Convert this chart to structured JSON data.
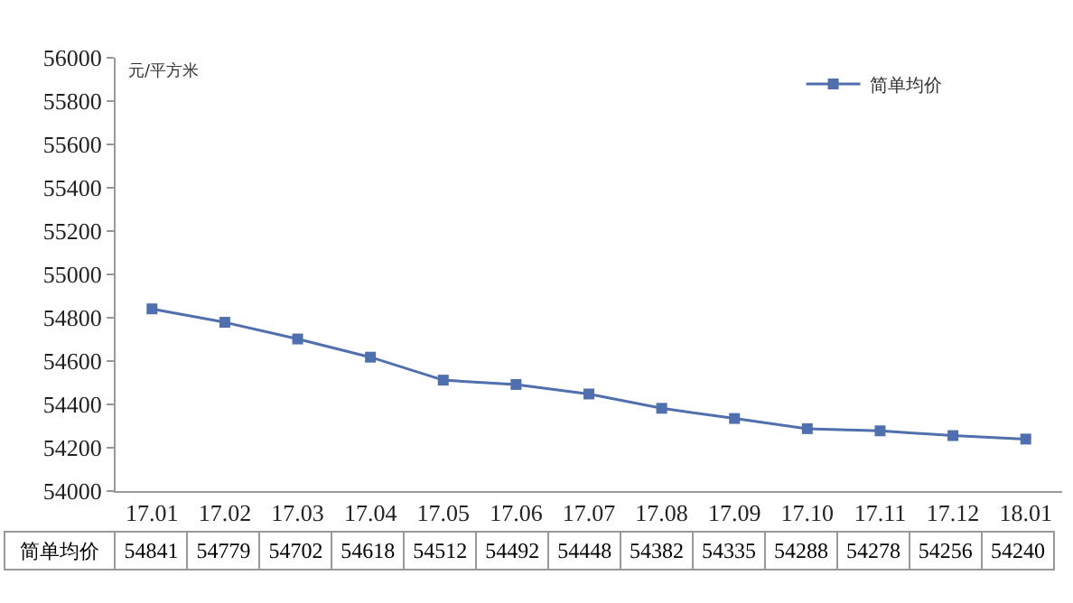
{
  "chart_data": {
    "type": "line",
    "ylabel": "元/平方米",
    "categories": [
      "17.01",
      "17.02",
      "17.03",
      "17.04",
      "17.05",
      "17.06",
      "17.07",
      "17.08",
      "17.09",
      "17.10",
      "17.11",
      "17.12",
      "18.01"
    ],
    "series": [
      {
        "name": "简单均价",
        "color": "#4f6fae",
        "values": [
          54841,
          54779,
          54702,
          54618,
          54512,
          54492,
          54448,
          54382,
          54335,
          54288,
          54278,
          54256,
          54240
        ]
      }
    ],
    "ylim": [
      54000,
      56000
    ],
    "yticks": [
      54000,
      54200,
      54400,
      54600,
      54800,
      55000,
      55200,
      55400,
      55600,
      55800,
      56000
    ],
    "legend": "top right",
    "marker": "square",
    "grid": false,
    "data_labels": true
  }
}
